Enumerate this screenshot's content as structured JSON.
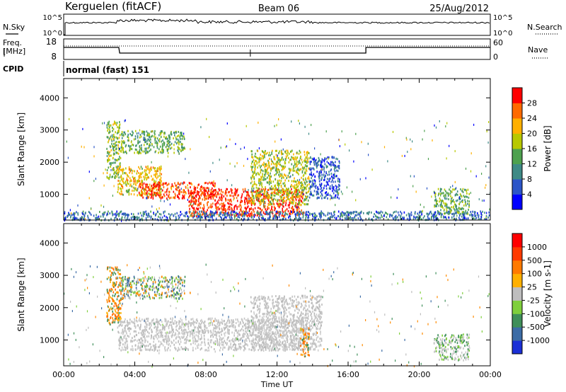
{
  "header": {
    "station": "Kerguelen (fitACF)",
    "beam": "Beam 06",
    "date": "25/Aug/2012"
  },
  "top_panels": {
    "nsky_label": "N.Sky",
    "nsky_ticks": [
      "10^5",
      "10^0"
    ],
    "nsearch_label": "N.Search",
    "nsearch_ticks": [
      "10^5",
      "10^0"
    ],
    "freq_label": "Freq.",
    "freq_unit": "[MHz]",
    "freq_ticks": [
      "18",
      "8"
    ],
    "nave_label": "Nave",
    "nave_ticks": [
      "60",
      "0"
    ],
    "cpid_label": "CPID",
    "cpid_value": "normal (fast) 151"
  },
  "chart_data": [
    {
      "type": "heatmap",
      "name": "power-panel",
      "ylabel": "Slant Range [km]",
      "ylim": [
        200,
        4600
      ],
      "yticks": [
        1000,
        2000,
        3000,
        4000
      ],
      "xlim_hours": [
        0,
        24
      ],
      "colorbar": {
        "label": "Power [dB]",
        "ticks": [
          4,
          8,
          12,
          16,
          20,
          24,
          28
        ],
        "range": [
          0,
          32
        ],
        "colors": [
          "#0000ff",
          "#2c55c8",
          "#3e8a86",
          "#4ea14f",
          "#b8c800",
          "#ffb000",
          "#ff6a00",
          "#ff0000"
        ]
      },
      "regions": [
        {
          "t0": 2.4,
          "t1": 3.2,
          "r0": 1500,
          "r1": 3300,
          "level": 16
        },
        {
          "t0": 3.2,
          "t1": 6.8,
          "r0": 2300,
          "r1": 3000,
          "level": 14
        },
        {
          "t0": 3.0,
          "t1": 5.5,
          "r0": 1000,
          "r1": 1900,
          "level": 20
        },
        {
          "t0": 4.2,
          "t1": 8.5,
          "r0": 900,
          "r1": 1400,
          "level": 28
        },
        {
          "t0": 7.0,
          "t1": 13.5,
          "r0": 350,
          "r1": 1200,
          "level": 29
        },
        {
          "t0": 10.5,
          "t1": 13.8,
          "r0": 700,
          "r1": 2400,
          "level": 18
        },
        {
          "t0": 13.8,
          "t1": 15.5,
          "r0": 900,
          "r1": 2200,
          "level": 6
        },
        {
          "t0": 20.8,
          "t1": 22.8,
          "r0": 400,
          "r1": 1200,
          "level": 14
        },
        {
          "t0": 0.0,
          "t1": 24.0,
          "r0": 220,
          "r1": 500,
          "level": 8
        }
      ]
    },
    {
      "type": "heatmap",
      "name": "velocity-panel",
      "ylabel": "Slant Range [km]",
      "ylim": [
        200,
        4600
      ],
      "yticks": [
        1000,
        2000,
        3000,
        4000
      ],
      "xlim_hours": [
        0,
        24
      ],
      "xticks": [
        "00:00",
        "04:00",
        "08:00",
        "12:00",
        "16:00",
        "20:00",
        "00:00"
      ],
      "xlabel": "Time UT",
      "colorbar": {
        "label": "Velocity [m s-1]",
        "ticks": [
          "1000",
          "500",
          "100",
          "25",
          "-25",
          "-100",
          "-500",
          "-1000"
        ],
        "colors": [
          "#1a2fd6",
          "#3c6ca6",
          "#3f8f5a",
          "#7fcf3c",
          "#bebebe",
          "#ffb000",
          "#ff7a00",
          "#ff3a00",
          "#ff0000"
        ]
      },
      "regions": [
        {
          "t0": 2.4,
          "t1": 3.2,
          "r0": 1500,
          "r1": 3300,
          "level": "orange"
        },
        {
          "t0": 3.2,
          "t1": 6.8,
          "r0": 2300,
          "r1": 3000,
          "level": "mixed"
        },
        {
          "t0": 3.0,
          "t1": 13.5,
          "r0": 700,
          "r1": 1700,
          "level": "grey"
        },
        {
          "t0": 10.5,
          "t1": 14.5,
          "r0": 700,
          "r1": 2400,
          "level": "grey"
        },
        {
          "t0": 13.3,
          "t1": 13.8,
          "r0": 500,
          "r1": 1400,
          "level": "orange"
        },
        {
          "t0": 20.8,
          "t1": 22.8,
          "r0": 400,
          "r1": 1200,
          "level": "grey-green"
        }
      ]
    }
  ],
  "colors": {
    "ground_scatter": "#7f7f7f"
  }
}
